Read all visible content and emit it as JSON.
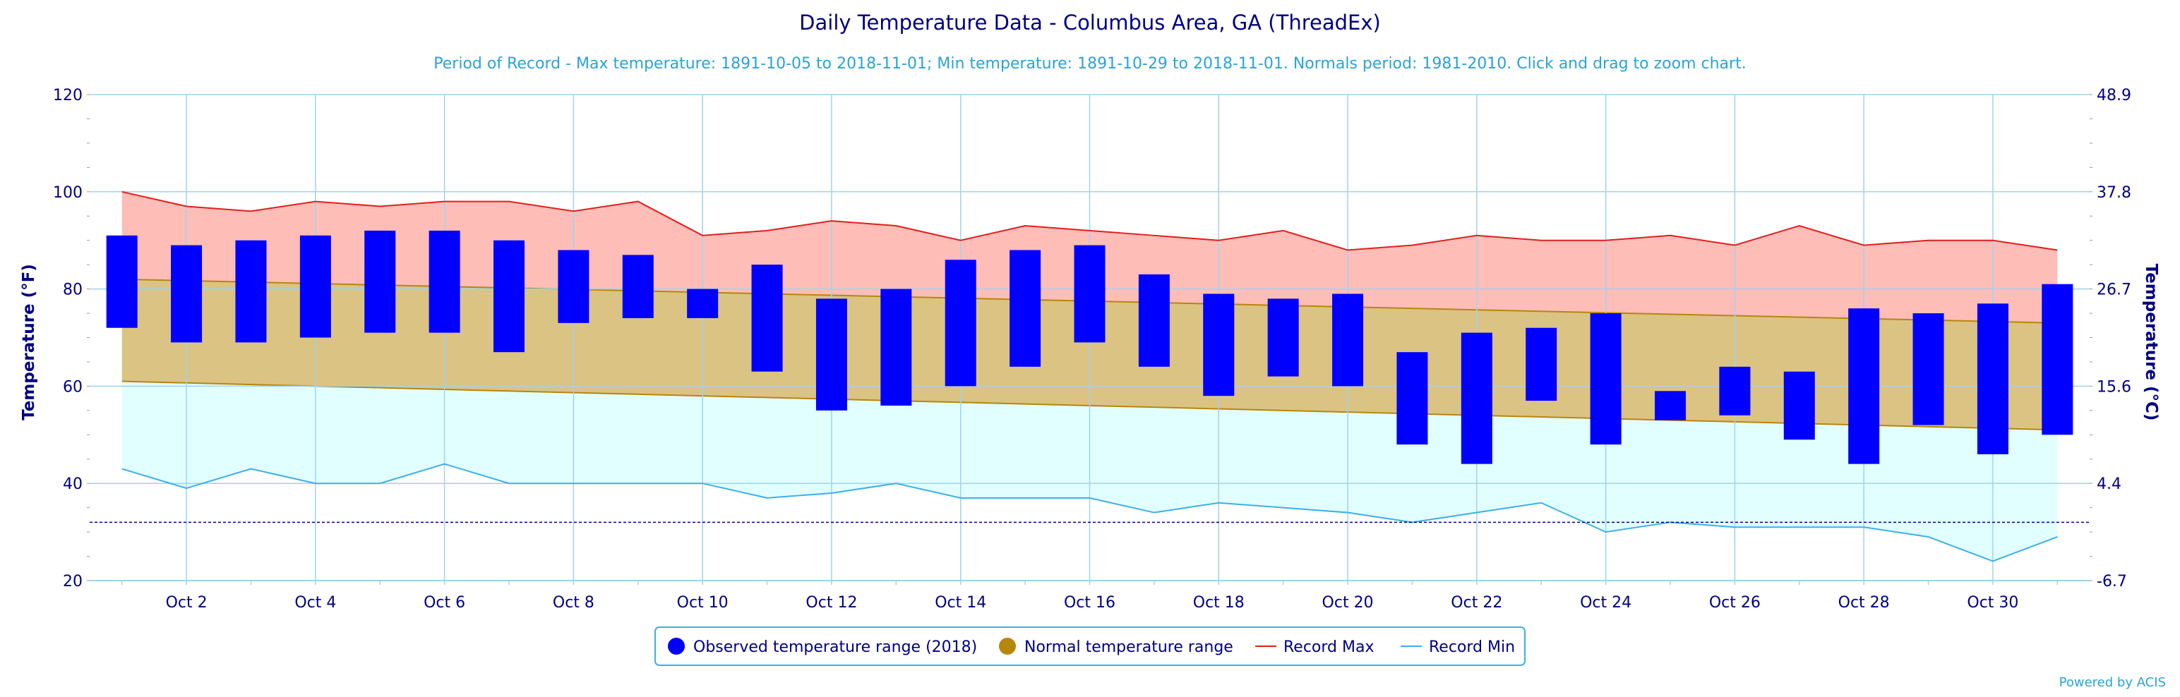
{
  "chart_data": {
    "type": "bar",
    "title": "Daily Temperature Data - Columbus Area, GA (ThreadEx)",
    "subtitle": "Period of Record - Max temperature: 1891-10-05 to 2018-11-01; Min temperature: 1891-10-29 to 2018-11-01. Normals period: 1981-2010. Click and drag to zoom chart.",
    "ylabel": "Temperature (°F)",
    "ylabel_right": "Temperature (°C)",
    "ylim": [
      20,
      120
    ],
    "yticks": [
      20,
      40,
      60,
      80,
      100,
      120
    ],
    "yticks_right": [
      "-6.7",
      "4.4",
      "15.6",
      "26.7",
      "37.8",
      "48.9"
    ],
    "x_days": [
      1,
      2,
      3,
      4,
      5,
      6,
      7,
      8,
      9,
      10,
      11,
      12,
      13,
      14,
      15,
      16,
      17,
      18,
      19,
      20,
      21,
      22,
      23,
      24,
      25,
      26,
      27,
      28,
      29,
      30,
      31
    ],
    "xtick_labels": [
      "Oct 2",
      "Oct 4",
      "Oct 6",
      "Oct 8",
      "Oct 10",
      "Oct 12",
      "Oct 14",
      "Oct 16",
      "Oct 18",
      "Oct 20",
      "Oct 22",
      "Oct 24",
      "Oct 26",
      "Oct 28",
      "Oct 30"
    ],
    "xtick_days": [
      2,
      4,
      6,
      8,
      10,
      12,
      14,
      16,
      18,
      20,
      22,
      24,
      26,
      28,
      30
    ],
    "grid": true,
    "freezing_line": 32,
    "series": [
      {
        "name": "Observed temperature range (2018)",
        "type": "range-bar",
        "low": [
          72,
          69,
          69,
          70,
          71,
          71,
          67,
          73,
          74,
          74,
          63,
          55,
          56,
          60,
          64,
          69,
          64,
          58,
          62,
          60,
          48,
          44,
          57,
          48,
          53,
          54,
          49,
          44,
          52,
          46,
          50
        ],
        "high": [
          91,
          89,
          90,
          91,
          92,
          92,
          90,
          88,
          87,
          80,
          85,
          78,
          80,
          86,
          88,
          89,
          83,
          79,
          78,
          79,
          67,
          71,
          72,
          75,
          59,
          64,
          63,
          76,
          75,
          77,
          81
        ]
      },
      {
        "name": "Normal temperature range",
        "type": "area-range",
        "low_start": 61,
        "low_end": 51,
        "high_start": 82,
        "high_end": 73
      },
      {
        "name": "Record Max",
        "type": "line",
        "values": [
          100,
          97,
          96,
          98,
          97,
          98,
          98,
          96,
          98,
          91,
          92,
          94,
          93,
          90,
          93,
          92,
          91,
          90,
          92,
          88,
          89,
          91,
          90,
          90,
          91,
          89,
          93,
          89,
          90,
          90,
          88
        ]
      },
      {
        "name": "Record Min",
        "type": "line",
        "values": [
          43,
          39,
          43,
          40,
          40,
          44,
          40,
          40,
          40,
          40,
          37,
          38,
          40,
          37,
          37,
          37,
          34,
          36,
          35,
          34,
          32,
          34,
          36,
          30,
          32,
          31,
          31,
          31,
          29,
          24,
          29
        ]
      }
    ],
    "colors": {
      "title": "#000080",
      "subtitle": "#29a3d6",
      "axis_text": "#000080",
      "grid": "#9fd3f0",
      "observed": "#0000ff",
      "normal_fill": "#dbc384",
      "normal_line": "#b8860b",
      "normal_legend": "#b8860b",
      "record_max_line": "#e0201c",
      "record_max_fill": "#ffbdb8",
      "record_min_line": "#3ab0e8",
      "record_min_fill": "#e2ffff",
      "freezing_line": "#000080",
      "credit": "#29a3d6"
    },
    "legend_position": "bottom-center",
    "credit": "Powered by ACIS"
  }
}
